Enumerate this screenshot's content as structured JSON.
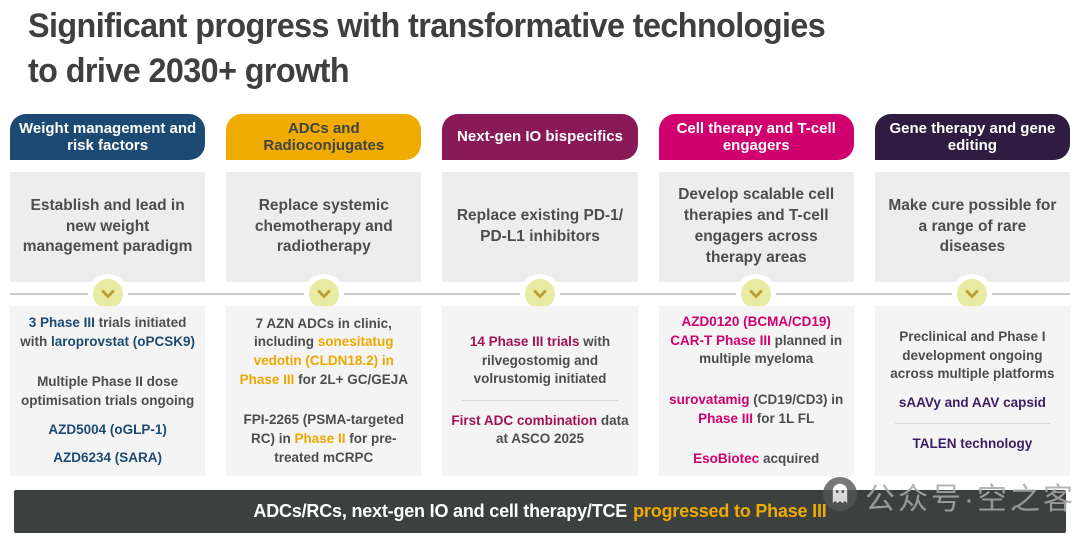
{
  "title": {
    "line1": "Significant progress with transformative technologies",
    "line2": "to drive 2030+ growth"
  },
  "colors": {
    "title": "#3f3f3f",
    "text": "#4d4d4d",
    "line": "#c9c9c9",
    "divider": "#d8d8d8",
    "summary_bg": "#ededed",
    "details_bg": "#f4f4f4",
    "footer_bg": "#3c4140",
    "footer_gold": "#f0ab00",
    "chevron_circle": "#e7eba1",
    "chevron_glyph": "#c09a2e",
    "watermark": "#a9a9a9"
  },
  "columns": [
    {
      "id": "weight-management",
      "header": {
        "label": "Weight management and risk factors",
        "bg": "#1d4a73",
        "fg": "#ffffff"
      },
      "accent": "#1d4a73",
      "summary": "Establish and lead in new weight management paradigm",
      "details": [
        {
          "segments": [
            {
              "t": "3 Phase III",
              "c": "accent"
            },
            {
              "t": " trials initiated with ",
              "c": "plain"
            },
            {
              "t": "laroprovstat (oPCSK9)",
              "c": "accent"
            }
          ]
        },
        {
          "divider": true
        },
        {
          "segments": [
            {
              "t": "Multiple Phase II dose optimisation trials ongoing",
              "c": "plain"
            }
          ]
        },
        {
          "segments": [
            {
              "t": "AZD5004 (oGLP-1)",
              "c": "accent"
            }
          ]
        },
        {
          "segments": [
            {
              "t": "AZD6234 (SARA)",
              "c": "accent"
            }
          ]
        }
      ]
    },
    {
      "id": "adcs-radioconjugates",
      "header": {
        "label": "ADCs and Radioconjugates",
        "bg": "#f0ab00",
        "fg": "#3f4444"
      },
      "accent": "#eda800",
      "summary": "Replace systemic chemotherapy and radiotherapy",
      "details": [
        {
          "segments": [
            {
              "t": "7 AZN ADCs in clinic, including ",
              "c": "plain"
            },
            {
              "t": "sonesitatug vedotin (CLDN18.2) in Phase III",
              "c": "accent"
            },
            {
              "t": " for 2L+ GC/GEJA",
              "c": "plain"
            }
          ]
        },
        {
          "divider": true
        },
        {
          "segments": [
            {
              "t": "FPI-2265 (PSMA-targeted RC) in ",
              "c": "plain"
            },
            {
              "t": "Phase II",
              "c": "accent"
            },
            {
              "t": " for pre-treated mCRPC",
              "c": "plain"
            }
          ]
        }
      ]
    },
    {
      "id": "next-gen-io",
      "header": {
        "label": "Next-gen IO bispecifics",
        "bg": "#891a57",
        "fg": "#ffffff"
      },
      "accent": "#a01252",
      "summary": "Replace existing PD-1/ PD-L1 inhibitors",
      "details": [
        {
          "segments": [
            {
              "t": "14 Phase III trials",
              "c": "accent"
            },
            {
              "t": " with rilvegostomig and volrustomig initiated",
              "c": "plain"
            }
          ]
        },
        {
          "divider": true
        },
        {
          "segments": [
            {
              "t": "First ADC combination",
              "c": "accent"
            },
            {
              "t": " data at ASCO 2025",
              "c": "plain"
            }
          ]
        }
      ]
    },
    {
      "id": "cell-therapy",
      "header": {
        "label": "Cell therapy and T-cell engagers",
        "bg": "#d0006f",
        "fg": "#ffffff"
      },
      "accent": "#d0006f",
      "summary": "Develop scalable cell therapies and T-cell engagers across therapy areas",
      "details": [
        {
          "segments": [
            {
              "t": "AZD0120 (BCMA/CD19) CAR-T Phase III",
              "c": "accent"
            },
            {
              "t": " planned in multiple myeloma",
              "c": "plain"
            }
          ]
        },
        {
          "divider": true
        },
        {
          "segments": [
            {
              "t": "surovatamig",
              "c": "accent"
            },
            {
              "t": " (CD19/CD3) in ",
              "c": "plain"
            },
            {
              "t": "Phase III",
              "c": "accent"
            },
            {
              "t": " for 1L FL",
              "c": "plain"
            }
          ]
        },
        {
          "divider": true
        },
        {
          "segments": [
            {
              "t": "EsoBiotec",
              "c": "accent"
            },
            {
              "t": " acquired",
              "c": "plain"
            }
          ]
        }
      ]
    },
    {
      "id": "gene-therapy",
      "header": {
        "label": "Gene therapy and gene editing",
        "bg": "#2f1c40",
        "fg": "#ffffff"
      },
      "accent": "#3d1d62",
      "summary": "Make cure possible for a range of rare diseases",
      "details": [
        {
          "segments": [
            {
              "t": "Preclinical and Phase I development ongoing across multiple platforms",
              "c": "plain"
            }
          ]
        },
        {
          "segments": [
            {
              "t": "sAAVy and AAV capsid",
              "c": "accent"
            }
          ]
        },
        {
          "divider": true
        },
        {
          "segments": [
            {
              "t": "TALEN technology",
              "c": "accent"
            }
          ]
        }
      ]
    }
  ],
  "footer": {
    "text_white": "ADCs/RCs, next-gen IO and cell therapy/TCE",
    "text_gold": "progressed to Phase III"
  },
  "watermark": {
    "text": "公众号·空之客"
  }
}
